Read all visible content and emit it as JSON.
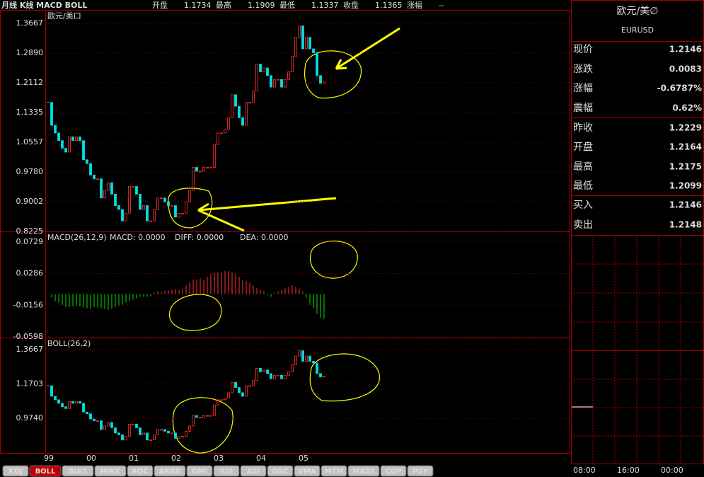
{
  "toolbar": {
    "title": "月线 K线 MACD BOLL",
    "fields": [
      {
        "label": "开盘",
        "value": "1.1734"
      },
      {
        "label": "最高",
        "value": "1.1909"
      },
      {
        "label": "最低",
        "value": "1.1337"
      },
      {
        "label": "收盘",
        "value": "1.1365"
      },
      {
        "label": "涨幅",
        "value": "--"
      }
    ]
  },
  "kline": {
    "label": "欧元/美口",
    "ylim": [
      0.8225,
      1.4019
    ],
    "yticks": [
      1.3667,
      {
        "value": 1.289,
        "label": "1.2890"
      },
      1.2112,
      1.1335,
      1.0557,
      {
        "value": 0.978,
        "label": "0.9780"
      },
      0.9002,
      0.8225
    ],
    "closes": [
      1.16,
      1.1,
      1.08,
      1.06,
      1.04,
      1.03,
      1.07,
      1.06,
      1.07,
      1.06,
      1.01,
      1.0,
      0.97,
      0.96,
      0.96,
      0.91,
      0.93,
      0.95,
      0.92,
      0.89,
      0.88,
      0.85,
      0.87,
      0.94,
      0.94,
      0.92,
      0.88,
      0.89,
      0.85,
      0.85,
      0.88,
      0.91,
      0.91,
      0.9,
      0.89,
      0.89,
      0.86,
      0.87,
      0.87,
      0.9,
      0.93,
      0.99,
      0.98,
      0.98,
      0.99,
      0.99,
      0.99,
      1.05,
      1.08,
      1.08,
      1.09,
      1.12,
      1.18,
      1.15,
      1.12,
      1.1,
      1.16,
      1.16,
      1.19,
      1.26,
      1.24,
      1.25,
      1.23,
      1.2,
      1.22,
      1.22,
      1.2,
      1.22,
      1.24,
      1.28,
      1.33,
      1.36,
      1.3,
      1.33,
      1.3,
      1.29,
      1.23,
      1.21,
      1.2146
    ]
  },
  "macd": {
    "label": "MACD(26,12,9)",
    "readouts": [
      "MACD: 0.0000",
      "DIFF: 0.0000",
      "DEA: 0.0000"
    ],
    "ylim": [
      -0.0608,
      0.0875
    ],
    "yticks": [
      0.0729,
      0.0286,
      -0.0156,
      -0.0598
    ],
    "histogram": [
      0,
      -0.005,
      -0.01,
      -0.012,
      -0.015,
      -0.018,
      -0.018,
      -0.017,
      -0.016,
      -0.017,
      -0.019,
      -0.02,
      -0.02,
      -0.018,
      -0.019,
      -0.02,
      -0.021,
      -0.022,
      -0.02,
      -0.018,
      -0.016,
      -0.015,
      -0.012,
      -0.01,
      -0.008,
      -0.006,
      -0.004,
      -0.004,
      -0.004,
      -0.003,
      0.002,
      0.004,
      0.003,
      0.004,
      0.005,
      0.006,
      0.007,
      0.006,
      0.008,
      0.012,
      0.016,
      0.02,
      0.02,
      0.022,
      0.02,
      0.024,
      0.028,
      0.03,
      0.03,
      0.03,
      0.032,
      0.032,
      0.03,
      0.028,
      0.024,
      0.02,
      0.018,
      0.016,
      0.012,
      0.008,
      0.006,
      0.004,
      -0.002,
      -0.004,
      0.002,
      0.004,
      0.006,
      0.008,
      0.01,
      0.012,
      0.01,
      0.008,
      0.004,
      -0.005,
      -0.015,
      -0.02,
      -0.028,
      -0.033,
      -0.035
    ]
  },
  "boll": {
    "label": "BOLL(26,2)",
    "ylim": [
      0.776,
      1.4355
    ],
    "yticks": [
      1.3667,
      {
        "value": 1.1703,
        "label": "1.1703"
      },
      {
        "value": 0.974,
        "label": "0.9740"
      }
    ]
  },
  "xticks": [
    {
      "value": 0,
      "label": "99"
    },
    {
      "value": 12,
      "label": "00"
    },
    {
      "value": 24,
      "label": "01"
    },
    {
      "value": 36,
      "label": "02"
    },
    {
      "value": 48,
      "label": "03"
    },
    {
      "value": 60,
      "label": "04"
    },
    {
      "value": 72,
      "label": "05"
    }
  ],
  "tabs": [
    {
      "label": "KDJ"
    },
    {
      "label": "BOLL",
      "active": true
    },
    {
      "label": "BIAS"
    },
    {
      "label": "MIKE"
    },
    {
      "label": "ROC"
    },
    {
      "label": "ARBR"
    },
    {
      "label": "DMI"
    },
    {
      "label": "RSI"
    },
    {
      "label": "ASI"
    },
    {
      "label": "OSC"
    },
    {
      "label": "VMA"
    },
    {
      "label": "MTM"
    },
    {
      "label": "MASS"
    },
    {
      "label": "CDP"
    },
    {
      "label": "PSY"
    }
  ],
  "quote": {
    "name": "欧元/美∅",
    "code": "EURUSD",
    "rows": [
      {
        "label": "现价",
        "value": "1.2146",
        "color": "#00e000"
      },
      {
        "label": "涨跌",
        "value": "0.0083",
        "color": "#00e000"
      },
      {
        "label": "涨幅",
        "value": "-0.6787%",
        "color": "#00e000"
      },
      {
        "label": "震幅",
        "value": "0.62%",
        "color": "#00e0e0"
      },
      {
        "label": "昨收",
        "value": "1.2229",
        "color": "#ffffff"
      },
      {
        "label": "开盘",
        "value": "1.2164",
        "color": "#00e000"
      },
      {
        "label": "最高",
        "value": "1.2175",
        "color": "#00e000"
      },
      {
        "label": "最低",
        "value": "1.2099",
        "color": "#00e000"
      },
      {
        "label": "买入",
        "value": "1.2146",
        "color": "#00e000"
      },
      {
        "label": "卖出",
        "value": "1.2148",
        "color": "#00e000"
      }
    ],
    "times": [
      "08:00",
      "16:00",
      "00:00"
    ]
  }
}
